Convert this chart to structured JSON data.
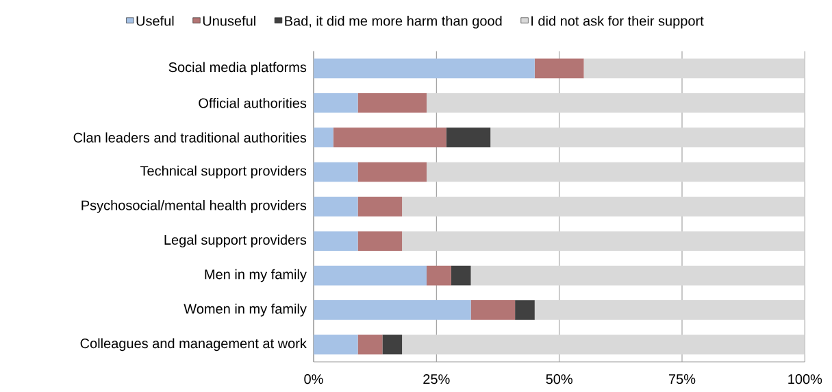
{
  "chart_data": {
    "type": "bar",
    "orientation": "horizontal",
    "stacked": true,
    "categories": [
      "Social media platforms",
      "Official authorities",
      "Clan leaders and traditional authorities",
      "Technical support providers",
      "Psychosocial/mental health providers",
      "Legal support providers",
      "Men in my family",
      "Women in my family",
      "Colleagues and management at work"
    ],
    "series": [
      {
        "name": "Useful",
        "color": "#a6c2e6",
        "values": [
          45,
          9,
          4,
          9,
          9,
          9,
          23,
          32,
          9
        ]
      },
      {
        "name": "Unuseful",
        "color": "#b37574",
        "values": [
          10,
          14,
          23,
          14,
          9,
          9,
          5,
          9,
          5
        ]
      },
      {
        "name": "Bad, it did me more harm than good",
        "color": "#404040",
        "values": [
          0,
          0,
          9,
          0,
          0,
          0,
          4,
          4,
          4
        ]
      },
      {
        "name": "I did not ask for their support",
        "color": "#d9d9d9",
        "values": [
          45,
          77,
          64,
          77,
          82,
          82,
          68,
          55,
          82
        ]
      }
    ],
    "xlim": [
      0,
      100
    ],
    "xticks": [
      {
        "value": 0,
        "label": "0%"
      },
      {
        "value": 25,
        "label": "25%"
      },
      {
        "value": 50,
        "label": "50%"
      },
      {
        "value": 75,
        "label": "75%"
      },
      {
        "value": 100,
        "label": "100%"
      }
    ],
    "grid": "x",
    "legend": "top"
  }
}
